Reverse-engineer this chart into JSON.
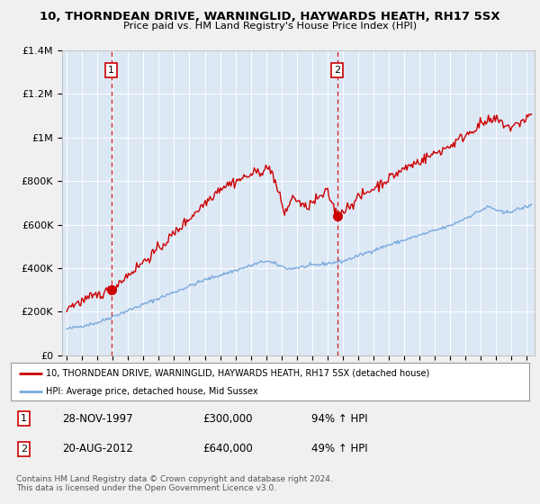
{
  "title": "10, THORNDEAN DRIVE, WARNINGLID, HAYWARDS HEATH, RH17 5SX",
  "subtitle": "Price paid vs. HM Land Registry's House Price Index (HPI)",
  "legend_line1": "10, THORNDEAN DRIVE, WARNINGLID, HAYWARDS HEATH, RH17 5SX (detached house)",
  "legend_line2": "HPI: Average price, detached house, Mid Sussex",
  "sale1_date": "28-NOV-1997",
  "sale1_price": "£300,000",
  "sale1_hpi": "94% ↑ HPI",
  "sale1_year": 1997.9,
  "sale1_value": 300000,
  "sale2_date": "20-AUG-2012",
  "sale2_price": "£640,000",
  "sale2_hpi": "49% ↑ HPI",
  "sale2_year": 2012.63,
  "sale2_value": 640000,
  "ylim": [
    0,
    1400000
  ],
  "yticks": [
    0,
    200000,
    400000,
    600000,
    800000,
    1000000,
    1200000,
    1400000
  ],
  "ytick_labels": [
    "£0",
    "£200K",
    "£400K",
    "£600K",
    "£800K",
    "£1M",
    "£1.2M",
    "£1.4M"
  ],
  "xlim_start": 1994.7,
  "xlim_end": 2025.5,
  "background_color": "#f0f0f0",
  "plot_bg_color": "#dde8f5",
  "plot_bg_color2": "#ffffff",
  "red_line_color": "#cc0000",
  "blue_line_color": "#7aaadd",
  "grid_color": "#ffffff",
  "dashed_line_color": "#cc0000",
  "footnote": "Contains HM Land Registry data © Crown copyright and database right 2024.\nThis data is licensed under the Open Government Licence v3.0."
}
